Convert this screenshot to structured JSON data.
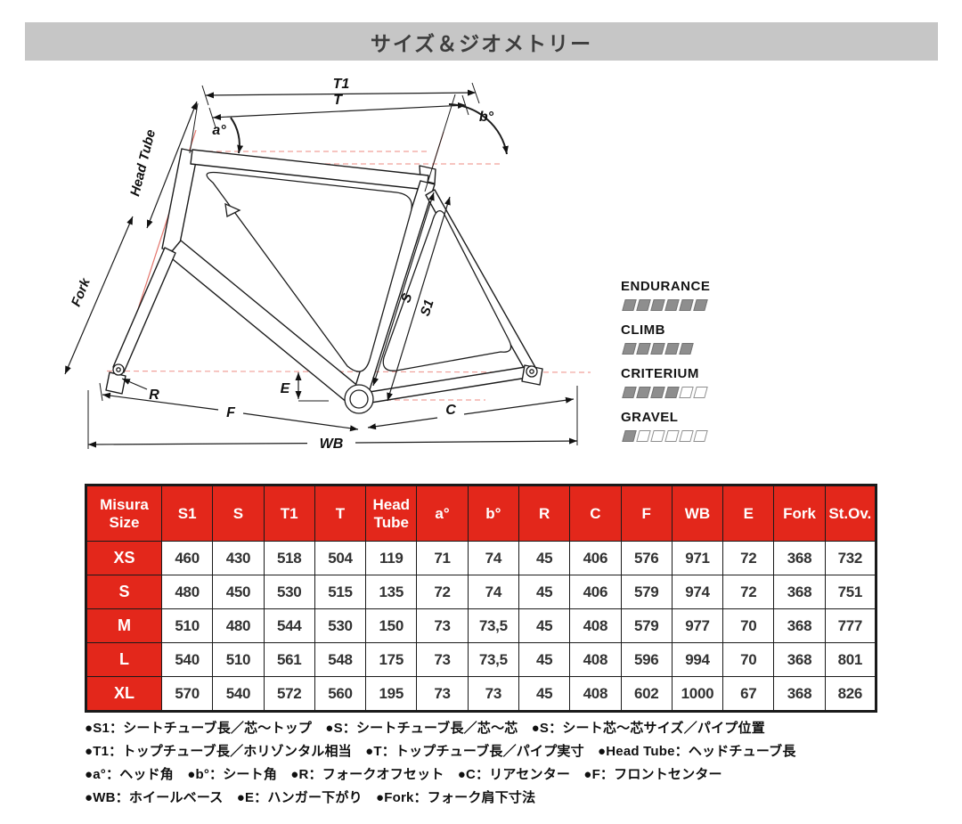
{
  "banner": {
    "title": "サイズ＆ジオメトリー"
  },
  "legend": {
    "items": [
      {
        "label": "ENDURANCE",
        "filled": 6,
        "empty": 0
      },
      {
        "label": "CLIMB",
        "filled": 5,
        "empty": 0
      },
      {
        "label": "CRITERIUM",
        "filled": 4,
        "empty": 2
      },
      {
        "label": "GRAVEL",
        "filled": 1,
        "empty": 5
      }
    ]
  },
  "diagram": {
    "labels": {
      "t1": "T1",
      "t": "T",
      "a_deg": "a°",
      "b_deg": "b°",
      "head_tube": "Head Tube",
      "fork": "Fork",
      "s": "S",
      "s1": "S1",
      "r": "R",
      "e": "E",
      "f": "F",
      "c": "C",
      "wb": "WB"
    }
  },
  "table": {
    "header_col0": "Misura\nSize",
    "header_cols": [
      "S1",
      "S",
      "T1",
      "T",
      "Head\nTube",
      "a°",
      "b°",
      "R",
      "C",
      "F",
      "WB",
      "E",
      "Fork",
      "St.Ov."
    ],
    "rows": [
      {
        "size": "XS",
        "values": [
          "460",
          "430",
          "518",
          "504",
          "119",
          "71",
          "74",
          "45",
          "406",
          "576",
          "971",
          "72",
          "368",
          "732"
        ]
      },
      {
        "size": "S",
        "values": [
          "480",
          "450",
          "530",
          "515",
          "135",
          "72",
          "74",
          "45",
          "406",
          "579",
          "974",
          "72",
          "368",
          "751"
        ]
      },
      {
        "size": "M",
        "values": [
          "510",
          "480",
          "544",
          "530",
          "150",
          "73",
          "73,5",
          "45",
          "408",
          "579",
          "977",
          "70",
          "368",
          "777"
        ]
      },
      {
        "size": "L",
        "values": [
          "540",
          "510",
          "561",
          "548",
          "175",
          "73",
          "73,5",
          "45",
          "408",
          "596",
          "994",
          "70",
          "368",
          "801"
        ]
      },
      {
        "size": "XL",
        "values": [
          "570",
          "540",
          "572",
          "560",
          "195",
          "73",
          "73",
          "45",
          "408",
          "602",
          "1000",
          "67",
          "368",
          "826"
        ]
      }
    ]
  },
  "footnotes": [
    "●S1：シートチューブ長／芯～トップ　●S：シートチューブ長／芯～芯　●S：シート芯～芯サイズ／パイプ位置",
    "●T1：トップチューブ長／ホリゾンタル相当　●T：トップチューブ長／パイプ実寸　●Head Tube：ヘッドチューブ長",
    "●a°：ヘッド角　●b°：シート角　●R：フォークオフセット　●C：リアセンター　●F：フロントセンター",
    "●WB：ホイールベース　●E：ハンガー下がり　●Fork：フォーク肩下寸法"
  ],
  "colors": {
    "accent_red": "#e3271b",
    "banner_bg": "#c6c6c6",
    "banner_text": "#3d3d3d",
    "legend_filled": "#8e8e8e",
    "diagram_axis_red": "#e4756c",
    "diagram_dashed_red": "#f0a09a"
  }
}
